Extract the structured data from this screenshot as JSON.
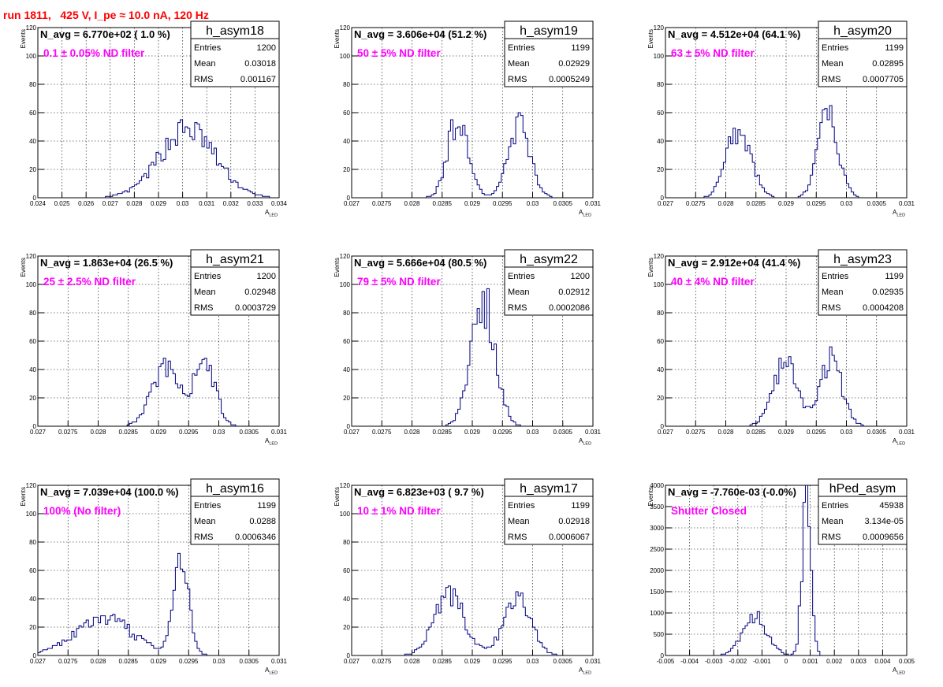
{
  "page": {
    "title": "run 1811,   425 V, I_pe ≈ 10.0 nA, 120 Hz"
  },
  "colors": {
    "histogram": "#000080",
    "title": "#ff0000",
    "annotation": "#ff00ff",
    "grid": "#000000"
  },
  "chart_data": [
    {
      "type": "histogram",
      "name": "h_asym18",
      "navg": "N_avg = 6.770e+02 ( 1.0 %)",
      "filter": "0.1 ± 0.05% ND filter",
      "stats": [
        [
          "Entries",
          "1200"
        ],
        [
          "Mean",
          "0.03018"
        ],
        [
          "RMS",
          "0.001167"
        ]
      ],
      "xlabel": "A",
      "xlabel_sub": "LED",
      "ylabel": "Events",
      "xlim": [
        0.024,
        0.034
      ],
      "ylim": [
        0,
        120
      ],
      "xticks": [
        0.024,
        0.025,
        0.026,
        0.027,
        0.028,
        0.029,
        0.03,
        0.031,
        0.032,
        0.033,
        0.034
      ],
      "xtick_labels": [
        "0.024",
        "0.025",
        "0.026",
        "0.027",
        "0.028",
        "0.029",
        "0.03",
        "0.031",
        "0.032",
        "0.033",
        "0.034"
      ],
      "yticks": [
        0,
        20,
        40,
        60,
        80,
        100,
        120
      ],
      "ytick_labels": [
        "0",
        "20",
        "40",
        "60",
        "80",
        "100",
        "120"
      ],
      "grid": true,
      "peaks": [
        {
          "c": 0.0302,
          "s": 0.00115,
          "a": 48
        }
      ]
    },
    {
      "type": "histogram",
      "name": "h_asym19",
      "navg": "N_avg = 3.606e+04 (51.2 %)",
      "filter": "50 ± 5% ND filter",
      "stats": [
        [
          "Entries",
          "1199"
        ],
        [
          "Mean",
          "0.02929"
        ],
        [
          "RMS",
          "0.0005249"
        ]
      ],
      "xlabel": "A",
      "xlabel_sub": "LED",
      "ylabel": "Events",
      "xlim": [
        0.027,
        0.031
      ],
      "ylim": [
        0,
        120
      ],
      "xticks": [
        0.027,
        0.0275,
        0.028,
        0.0285,
        0.029,
        0.0295,
        0.03,
        0.0305,
        0.031
      ],
      "xtick_labels": [
        "0.027",
        "0.0275",
        "0.028",
        "0.0285",
        "0.029",
        "0.0295",
        "0.03",
        "0.0305",
        "0.031"
      ],
      "yticks": [
        0,
        20,
        40,
        60,
        80,
        100,
        120
      ],
      "ytick_labels": [
        "0",
        "20",
        "40",
        "60",
        "80",
        "100",
        "120"
      ],
      "grid": true,
      "peaks": [
        {
          "c": 0.02877,
          "s": 0.00017,
          "a": 57
        },
        {
          "c": 0.02978,
          "s": 0.00018,
          "a": 51
        }
      ]
    },
    {
      "type": "histogram",
      "name": "h_asym20",
      "navg": "N_avg = 4.512e+04 (64.1 %)",
      "filter": "63 ± 5% ND filter",
      "stats": [
        [
          "Entries",
          "1199"
        ],
        [
          "Mean",
          "0.02895"
        ],
        [
          "RMS",
          "0.0007705"
        ]
      ],
      "xlabel": "A",
      "xlabel_sub": "LED",
      "ylabel": "Events",
      "xlim": [
        0.027,
        0.031
      ],
      "ylim": [
        0,
        120
      ],
      "xticks": [
        0.027,
        0.0275,
        0.028,
        0.0285,
        0.029,
        0.0295,
        0.03,
        0.0305,
        0.031
      ],
      "xtick_labels": [
        "0.027",
        "0.0275",
        "0.028",
        "0.0285",
        "0.029",
        "0.0295",
        "0.03",
        "0.0305",
        "0.031"
      ],
      "yticks": [
        0,
        20,
        40,
        60,
        80,
        100,
        120
      ],
      "ytick_labels": [
        "0",
        "20",
        "40",
        "60",
        "80",
        "100",
        "120"
      ],
      "grid": true,
      "peaks": [
        {
          "c": 0.02822,
          "s": 0.0002,
          "a": 50
        },
        {
          "c": 0.0297,
          "s": 0.00017,
          "a": 57
        }
      ]
    },
    {
      "type": "histogram",
      "name": "h_asym21",
      "navg": "N_avg = 1.863e+04 (26.5 %)",
      "filter": "25 ± 2.5% ND filter",
      "stats": [
        [
          "Entries",
          "1200"
        ],
        [
          "Mean",
          "0.02948"
        ],
        [
          "RMS",
          "0.0003729"
        ]
      ],
      "xlabel": "A",
      "xlabel_sub": "LED",
      "ylabel": "Events",
      "xlim": [
        0.027,
        0.031
      ],
      "ylim": [
        0,
        120
      ],
      "xticks": [
        0.027,
        0.0275,
        0.028,
        0.0285,
        0.029,
        0.0295,
        0.03,
        0.0305,
        0.031
      ],
      "xtick_labels": [
        "0.027",
        "0.0275",
        "0.028",
        "0.0285",
        "0.029",
        "0.0295",
        "0.03",
        "0.0305",
        "0.031"
      ],
      "yticks": [
        0,
        20,
        40,
        60,
        80,
        100,
        120
      ],
      "ytick_labels": [
        "0",
        "20",
        "40",
        "60",
        "80",
        "100",
        "120"
      ],
      "grid": true,
      "peaks": [
        {
          "c": 0.0291,
          "s": 0.00022,
          "a": 40
        },
        {
          "c": 0.02975,
          "s": 0.00018,
          "a": 48
        }
      ]
    },
    {
      "type": "histogram",
      "name": "h_asym22",
      "navg": "N_avg = 5.666e+04 (80.5 %)",
      "filter": "79 ± 5% ND filter",
      "stats": [
        [
          "Entries",
          "1200"
        ],
        [
          "Mean",
          "0.02912"
        ],
        [
          "RMS",
          "0.0002086"
        ]
      ],
      "xlabel": "A",
      "xlabel_sub": "LED",
      "ylabel": "Events",
      "xlim": [
        0.027,
        0.031
      ],
      "ylim": [
        0,
        120
      ],
      "xticks": [
        0.027,
        0.0275,
        0.028,
        0.0285,
        0.029,
        0.0295,
        0.03,
        0.0305,
        0.031
      ],
      "xtick_labels": [
        "0.027",
        "0.0275",
        "0.028",
        "0.0285",
        "0.029",
        "0.0295",
        "0.03",
        "0.0305",
        "0.031"
      ],
      "yticks": [
        0,
        20,
        40,
        60,
        80,
        100,
        120
      ],
      "ytick_labels": [
        "0",
        "20",
        "40",
        "60",
        "80",
        "100",
        "120"
      ],
      "grid": true,
      "peaks": [
        {
          "c": 0.02918,
          "s": 0.0002,
          "a": 88
        }
      ]
    },
    {
      "type": "histogram",
      "name": "h_asym23",
      "navg": "N_avg = 2.912e+04 (41.4 %)",
      "filter": "40 ± 4% ND filter",
      "stats": [
        [
          "Entries",
          "1199"
        ],
        [
          "Mean",
          "0.02935"
        ],
        [
          "RMS",
          "0.0004208"
        ]
      ],
      "xlabel": "A",
      "xlabel_sub": "LED",
      "ylabel": "Events",
      "xlim": [
        0.027,
        0.031
      ],
      "ylim": [
        0,
        120
      ],
      "xticks": [
        0.027,
        0.0275,
        0.028,
        0.0285,
        0.029,
        0.0295,
        0.03,
        0.0305,
        0.031
      ],
      "xtick_labels": [
        "0.027",
        "0.0275",
        "0.028",
        "0.0285",
        "0.029",
        "0.0295",
        "0.03",
        "0.0305",
        "0.031"
      ],
      "yticks": [
        0,
        20,
        40,
        60,
        80,
        100,
        120
      ],
      "ytick_labels": [
        "0",
        "20",
        "40",
        "60",
        "80",
        "100",
        "120"
      ],
      "grid": true,
      "peaks": [
        {
          "c": 0.02898,
          "s": 0.0002,
          "a": 45
        },
        {
          "c": 0.02975,
          "s": 0.00018,
          "a": 46
        }
      ]
    },
    {
      "type": "histogram",
      "name": "h_asym16",
      "navg": "N_avg = 7.039e+04 (100.0 %)",
      "filter": "100% (No filter)",
      "stats": [
        [
          "Entries",
          "1199"
        ],
        [
          "Mean",
          "0.0288"
        ],
        [
          "RMS",
          "0.0006346"
        ]
      ],
      "xlabel": "A",
      "xlabel_sub": "LED",
      "ylabel": "Events",
      "xlim": [
        0.027,
        0.031
      ],
      "ylim": [
        0,
        120
      ],
      "xticks": [
        0.027,
        0.0275,
        0.028,
        0.0285,
        0.029,
        0.0295,
        0.03,
        0.0305,
        0.031
      ],
      "xtick_labels": [
        "0.027",
        "0.0275",
        "0.028",
        "0.0285",
        "0.029",
        "0.0295",
        "0.03",
        "0.0305",
        "0.031"
      ],
      "yticks": [
        0,
        20,
        40,
        60,
        80,
        100,
        120
      ],
      "ytick_labels": [
        "0",
        "20",
        "40",
        "60",
        "80",
        "100",
        "120"
      ],
      "grid": true,
      "peaks": [
        {
          "c": 0.0281,
          "s": 0.0005,
          "a": 25
        },
        {
          "c": 0.02938,
          "s": 0.00013,
          "a": 62
        }
      ]
    },
    {
      "type": "histogram",
      "name": "h_asym17",
      "navg": "N_avg = 6.823e+03 ( 9.7 %)",
      "filter": "10 ± 1% ND filter",
      "stats": [
        [
          "Entries",
          "1199"
        ],
        [
          "Mean",
          "0.02918"
        ],
        [
          "RMS",
          "0.0006067"
        ]
      ],
      "xlabel": "A",
      "xlabel_sub": "LED",
      "ylabel": "Events",
      "xlim": [
        0.027,
        0.031
      ],
      "ylim": [
        0,
        120
      ],
      "xticks": [
        0.027,
        0.0275,
        0.028,
        0.0285,
        0.029,
        0.0295,
        0.03,
        0.0305,
        0.031
      ],
      "xtick_labels": [
        "0.027",
        "0.0275",
        "0.028",
        "0.0285",
        "0.029",
        "0.0295",
        "0.03",
        "0.0305",
        "0.031"
      ],
      "yticks": [
        0,
        20,
        40,
        60,
        80,
        100,
        120
      ],
      "ytick_labels": [
        "0",
        "20",
        "40",
        "60",
        "80",
        "100",
        "120"
      ],
      "grid": true,
      "peaks": [
        {
          "c": 0.02862,
          "s": 0.00025,
          "a": 42
        },
        {
          "c": 0.02975,
          "s": 0.00022,
          "a": 43
        }
      ]
    },
    {
      "type": "histogram",
      "name": "hPed_asym",
      "navg": "N_avg = -7.760e-03 (-0.0%)",
      "filter": "Shutter Closed",
      "stats": [
        [
          "Entries",
          "45938"
        ],
        [
          "Mean",
          "3.134e-05"
        ],
        [
          "RMS",
          "0.0009656"
        ]
      ],
      "xlabel": "A",
      "xlabel_sub": "LED",
      "ylabel": "Events",
      "xlim": [
        -0.005,
        0.005
      ],
      "ylim": [
        0,
        4000
      ],
      "xticks": [
        -0.005,
        -0.004,
        -0.003,
        -0.002,
        -0.001,
        0,
        0.001,
        0.002,
        0.003,
        0.004,
        0.005
      ],
      "xtick_labels": [
        "-0.005",
        "-0.004",
        "-0.003",
        "-0.002",
        "-0.001",
        "0",
        "0.001",
        "0.002",
        "0.003",
        "0.004",
        "0.005"
      ],
      "yticks": [
        0,
        500,
        1000,
        1500,
        2000,
        2500,
        3000,
        3500,
        4000
      ],
      "ytick_labels": [
        "0",
        "500",
        "1000",
        "1500",
        "2000",
        "2500",
        "3000",
        "3500",
        "4000"
      ],
      "grid": true,
      "peaks": [
        {
          "c": -0.0013,
          "s": 0.0005,
          "a": 900
        },
        {
          "c": 0.00085,
          "s": 0.00018,
          "a": 3900
        }
      ]
    }
  ]
}
